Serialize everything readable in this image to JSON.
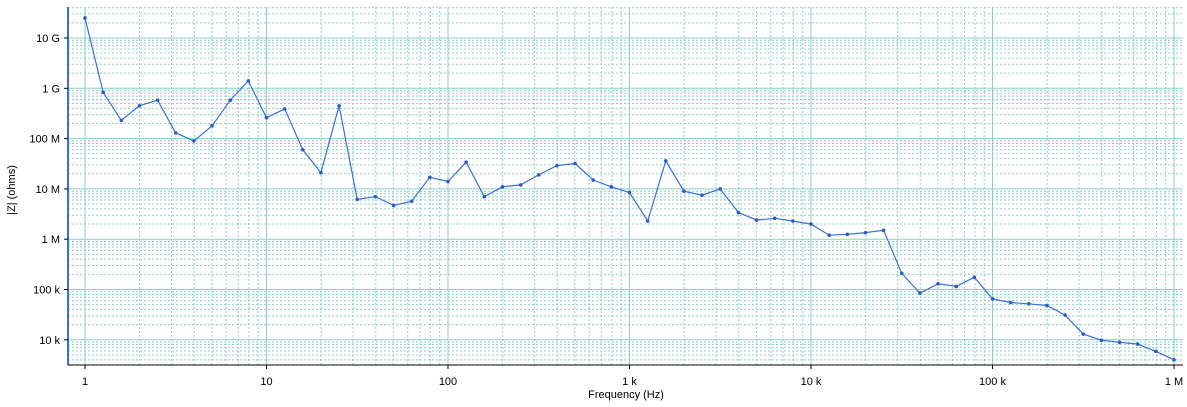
{
  "chart_data": {
    "type": "line",
    "xlabel": "Frequency (Hz)",
    "ylabel": "|Z| (ohms)",
    "x_scale": "log",
    "y_scale": "log",
    "xlim": [
      1,
      1000000
    ],
    "ylim": [
      3000,
      40000000000
    ],
    "grid": true,
    "x_ticks": [
      {
        "value": 1,
        "label": "1"
      },
      {
        "value": 10,
        "label": "10"
      },
      {
        "value": 100,
        "label": "100"
      },
      {
        "value": 1000,
        "label": "1 k"
      },
      {
        "value": 10000,
        "label": "10 k"
      },
      {
        "value": 100000,
        "label": "100 k"
      },
      {
        "value": 1000000,
        "label": "1 M"
      }
    ],
    "y_ticks": [
      {
        "value": 10000,
        "label": "10 k"
      },
      {
        "value": 100000,
        "label": "100 k"
      },
      {
        "value": 1000000,
        "label": "1 M"
      },
      {
        "value": 10000000,
        "label": "10 M"
      },
      {
        "value": 100000000,
        "label": "100 M"
      },
      {
        "value": 1000000000,
        "label": "1 G"
      },
      {
        "value": 10000000000,
        "label": "10 G"
      }
    ],
    "series": [
      {
        "x": [
          1,
          1.259,
          1.585,
          1.995,
          2.512,
          3.162,
          3.981,
          5.012,
          6.31,
          7.943,
          10,
          12.59,
          15.85,
          19.95,
          25.12,
          31.62,
          39.81,
          50.12,
          63.1,
          79.43,
          100,
          125.9,
          158.5,
          199.5,
          251.2,
          316.2,
          398.1,
          501.2,
          631,
          794.3,
          1000,
          1259,
          1585,
          1995,
          2512,
          3162,
          3981,
          5012,
          6310,
          7943,
          10000,
          12590,
          15850,
          19950,
          25120,
          31620,
          39810,
          50120,
          63100,
          79430,
          100000,
          125900,
          158500,
          199500,
          251200,
          316200,
          398100,
          501200,
          631000,
          794300,
          1000000
        ],
        "values": [
          25000000000,
          830000000,
          230000000,
          450000000,
          580000000,
          130000000,
          90000000,
          180000000,
          580000000,
          1400000000,
          260000000,
          390000000,
          60000000,
          21000000,
          450000000,
          6200000,
          7000000,
          4700000,
          5700000,
          17000000,
          14000000,
          34000000,
          7000000,
          11000000,
          12000000,
          19000000,
          29000000,
          32000000,
          15000000,
          11000000,
          8500000,
          2300000,
          36000000,
          9000000,
          7500000,
          10000000,
          3400000,
          2400000,
          2600000,
          2300000,
          2000000,
          1200000,
          1250000,
          1350000,
          1500000,
          210000,
          85000,
          130000,
          115000,
          175000,
          65000,
          55000,
          52000,
          48000,
          31000,
          13000,
          9800,
          8900,
          8200,
          5900,
          4000
        ]
      }
    ]
  }
}
